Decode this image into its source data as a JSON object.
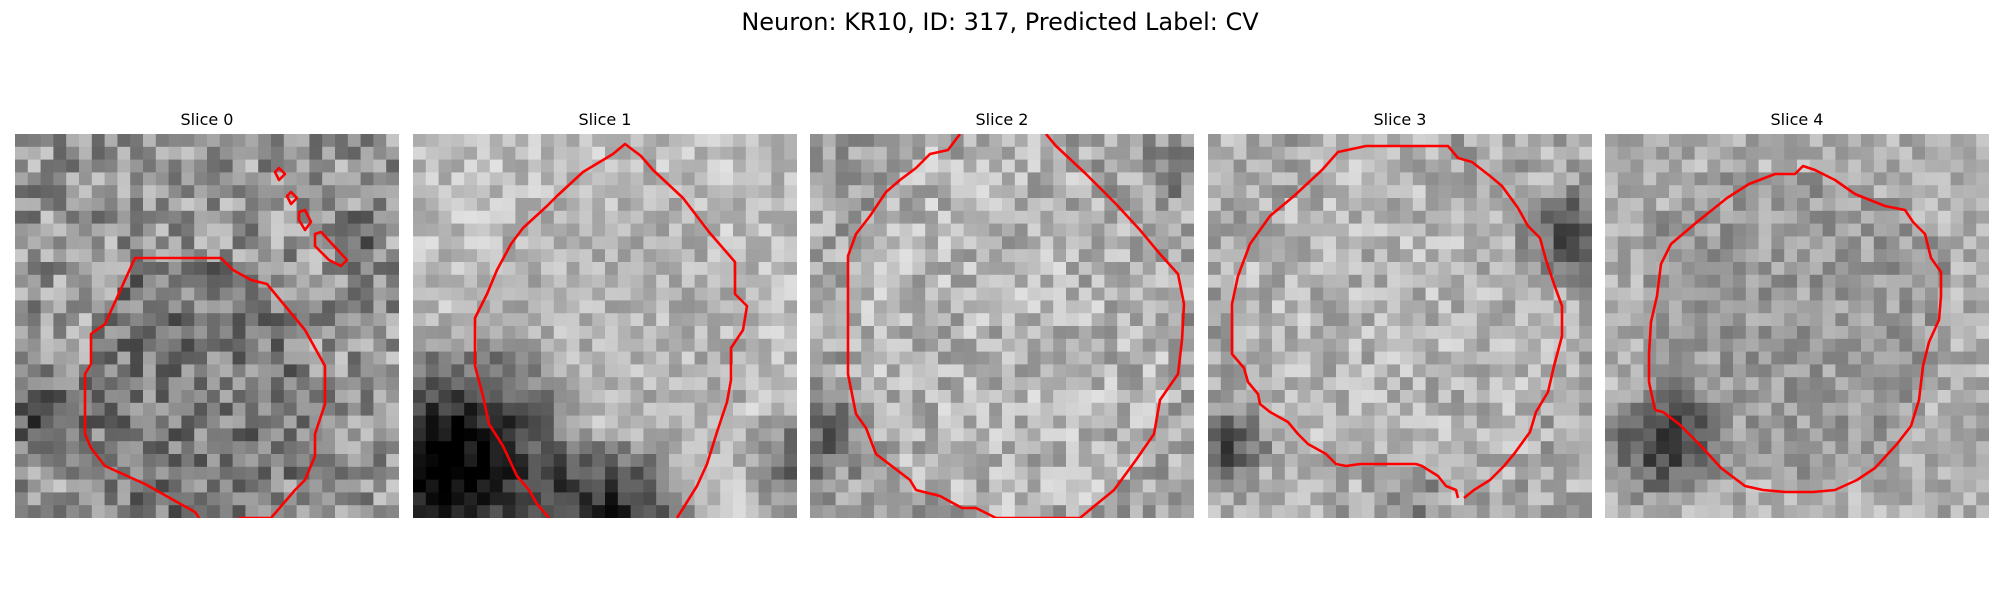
{
  "figure": {
    "title": "Neuron: KR10, ID: 317, Predicted Label: CV"
  },
  "panels": [
    {
      "title": "Slice 0"
    },
    {
      "title": "Slice 1"
    },
    {
      "title": "Slice 2"
    },
    {
      "title": "Slice 3"
    },
    {
      "title": "Slice 4"
    }
  ],
  "colors": {
    "contour": "#ff0000"
  }
}
